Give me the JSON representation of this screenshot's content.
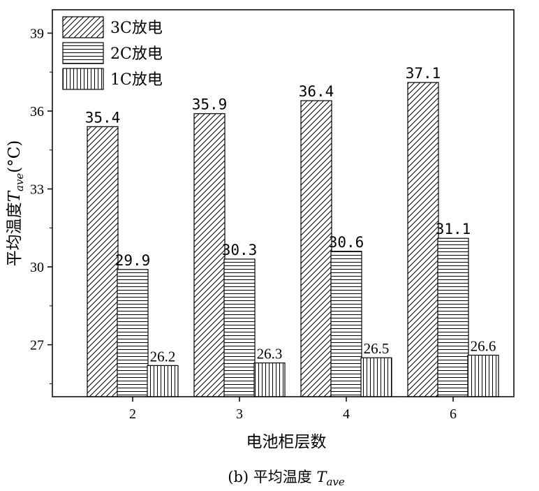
{
  "chart_data": {
    "type": "bar",
    "categories": [
      "2",
      "3",
      "4",
      "6"
    ],
    "series": [
      {
        "name": "3C放电",
        "values": [
          35.4,
          35.9,
          36.4,
          37.1
        ],
        "pattern": "diagonal"
      },
      {
        "name": "2C放电",
        "values": [
          29.9,
          30.3,
          30.6,
          31.1
        ],
        "pattern": "horizontal"
      },
      {
        "name": "1C放电",
        "values": [
          26.2,
          26.3,
          26.5,
          26.6
        ],
        "pattern": "vertical"
      }
    ],
    "data_labels": [
      [
        "35.4",
        "35.9",
        "36.4",
        "37.1"
      ],
      [
        "29.9",
        "30.3",
        "30.6",
        "31.1"
      ],
      [
        "26.2",
        "26.3",
        "26.5",
        "26.6"
      ]
    ],
    "xlabel": "电池柜层数",
    "ylabel": {
      "prefix": "平均温度",
      "symbol": "T",
      "subscript": "ave",
      "unit": "(°C)"
    },
    "yticks": [
      27,
      30,
      33,
      36,
      39
    ],
    "ylim": [
      25.0,
      39.9
    ],
    "legend_position": "top-left",
    "grid": false,
    "caption": {
      "prefix": "(b)  平均温度 ",
      "symbol": "T",
      "subscript": "ave"
    }
  }
}
